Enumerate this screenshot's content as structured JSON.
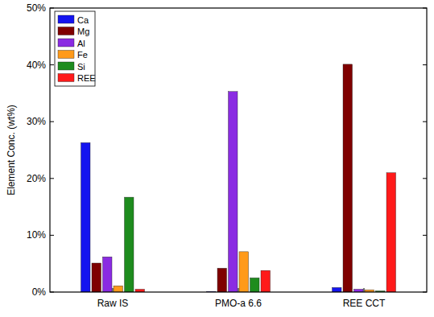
{
  "chart_data": {
    "type": "bar",
    "y_label": "Element Conc. (wt%)",
    "categories": [
      "Raw IS",
      "PMO-a 6.6",
      "REE CCT"
    ],
    "series": [
      {
        "name": "Ca",
        "color": "#1414f0",
        "values": [
          26.3,
          0.1,
          0.8
        ]
      },
      {
        "name": "Mg",
        "color": "#7f0000",
        "values": [
          5.1,
          4.2,
          40.1
        ]
      },
      {
        "name": "Al",
        "color": "#8a2be2",
        "values": [
          6.2,
          35.3,
          0.5
        ]
      },
      {
        "name": "Fe",
        "color": "#ff9a1a",
        "values": [
          1.1,
          7.1,
          0.4
        ]
      },
      {
        "name": "Si",
        "color": "#1e8c1e",
        "values": [
          16.7,
          2.5,
          0.2
        ]
      },
      {
        "name": "REE",
        "color": "#ff1a1a",
        "values": [
          0.5,
          3.8,
          21.0
        ]
      }
    ],
    "ylim": [
      0,
      50
    ],
    "yticks": [
      {
        "value": 0,
        "label": "0%"
      },
      {
        "value": 10,
        "label": "10%"
      },
      {
        "value": 20,
        "label": "20%"
      },
      {
        "value": 30,
        "label": "30%"
      },
      {
        "value": 40,
        "label": "40%"
      },
      {
        "value": 50,
        "label": "50%"
      }
    ],
    "legend": "upper left",
    "grid": false
  }
}
